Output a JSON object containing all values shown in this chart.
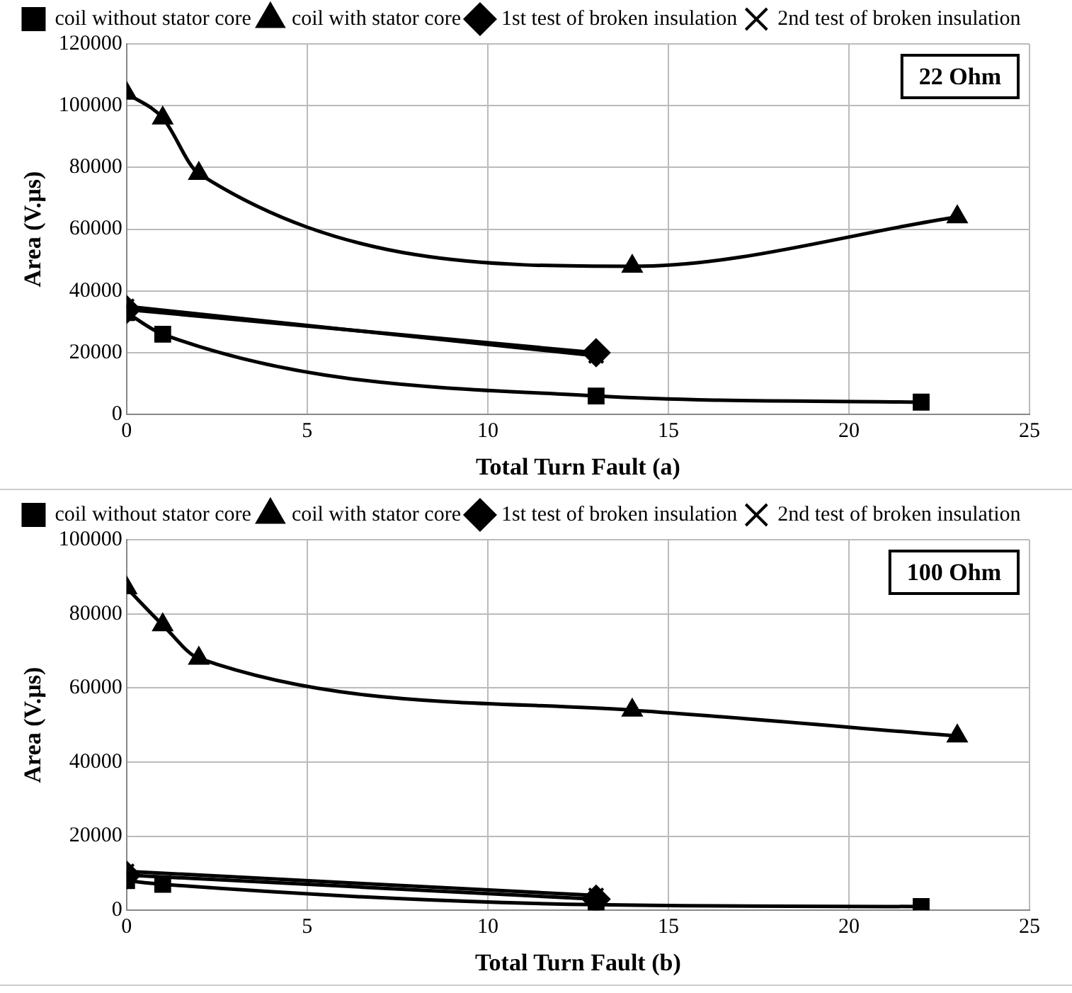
{
  "chart_data": [
    {
      "type": "line",
      "xlabel": "Total Turn Fault (a)",
      "ylabel": "Area (V.µs)",
      "xlim": [
        0,
        25
      ],
      "xticks": [
        0,
        5,
        10,
        15,
        20,
        25
      ],
      "ylim": [
        0,
        120000
      ],
      "yticks": [
        0,
        20000,
        40000,
        60000,
        80000,
        100000,
        120000
      ],
      "grid": true,
      "legend": "top",
      "annotations": [
        "22 Ohm"
      ],
      "series": [
        {
          "name": "coil without stator core",
          "color": "#000000",
          "marker": "square",
          "x": [
            0,
            1,
            13,
            22
          ],
          "values": [
            33000,
            26000,
            6000,
            4000
          ]
        },
        {
          "name": "coil with stator core",
          "color": "#000000",
          "marker": "triangle",
          "x": [
            0,
            1,
            2,
            14,
            23
          ],
          "values": [
            104000,
            96000,
            78000,
            48000,
            64000
          ]
        },
        {
          "name": "1st test of broken insulation",
          "color": "#000000",
          "marker": "diamond",
          "x": [
            0,
            13
          ],
          "values": [
            34000,
            20000
          ]
        },
        {
          "name": "2nd test of broken insulation",
          "color": "#000000",
          "marker": "cross",
          "x": [
            0,
            13
          ],
          "values": [
            35000,
            19000
          ]
        }
      ]
    },
    {
      "type": "line",
      "xlabel": "Total Turn Fault (b)",
      "ylabel": "Area (V.µs)",
      "xlim": [
        0,
        25
      ],
      "xticks": [
        0,
        5,
        10,
        15,
        20,
        25
      ],
      "ylim": [
        0,
        100000
      ],
      "yticks": [
        0,
        20000,
        40000,
        60000,
        80000,
        100000
      ],
      "grid": true,
      "legend": "top",
      "annotations": [
        "100 Ohm"
      ],
      "series": [
        {
          "name": "coil without stator core",
          "color": "#000000",
          "marker": "square",
          "x": [
            0,
            1,
            13,
            22
          ],
          "values": [
            8000,
            7000,
            1500,
            1000
          ]
        },
        {
          "name": "coil with stator core",
          "color": "#000000",
          "marker": "triangle",
          "x": [
            0,
            1,
            2,
            14,
            23
          ],
          "values": [
            87000,
            77000,
            68000,
            54000,
            47000
          ]
        },
        {
          "name": "1st test of broken insulation",
          "color": "#000000",
          "marker": "diamond",
          "x": [
            0,
            13
          ],
          "values": [
            9500,
            3000
          ]
        },
        {
          "name": "2nd test of broken insulation",
          "color": "#000000",
          "marker": "cross",
          "x": [
            0,
            13
          ],
          "values": [
            10500,
            4000
          ]
        }
      ]
    }
  ]
}
